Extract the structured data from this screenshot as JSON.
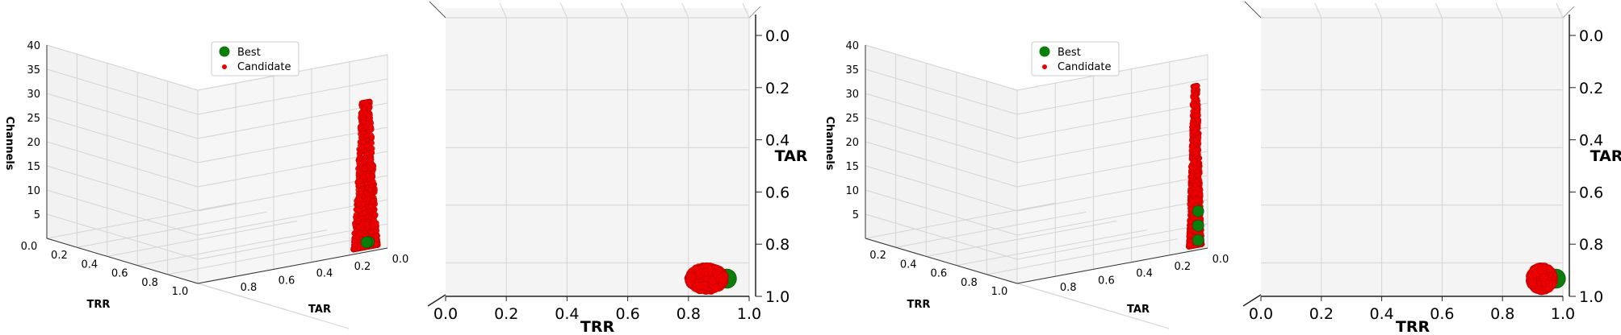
{
  "colors": {
    "best": "#0a7d0a",
    "candidate": "#ee0000",
    "pane": "#f2f2f2",
    "grid": "#d4d4d4"
  },
  "chart_data": [
    {
      "id": "p1",
      "type": "scatter3d",
      "xlabel": "TRR",
      "ylabel": "TAR",
      "zlabel": "Channels",
      "xticks": [
        "0.0",
        "0.2",
        "0.4",
        "0.6",
        "0.8",
        "1.0"
      ],
      "yticks": [
        "0.8",
        "0.6",
        "0.4",
        "0.2",
        "0.0"
      ],
      "zticks": [
        "5",
        "10",
        "15",
        "20",
        "25",
        "30",
        "35",
        "40"
      ],
      "xlim": [
        0,
        1
      ],
      "ylim": [
        0,
        1
      ],
      "zlim": [
        0,
        40
      ],
      "grid": true,
      "legend": "upper-center",
      "series": [
        {
          "name": "Best",
          "marker": "large-circle",
          "points": [
            [
              0.9,
              0.9,
              2
            ],
            [
              0.89,
              0.91,
              2
            ]
          ]
        },
        {
          "name": "Candidate",
          "marker": "small-circle",
          "spread": {
            "trr": [
              0.82,
              0.95
            ],
            "tar": [
              0.82,
              0.95
            ],
            "channels": [
              1,
              31
            ]
          }
        }
      ]
    },
    {
      "id": "p2",
      "type": "scatter",
      "xlabel": "TRR",
      "ylabel": "TAR",
      "xticks": [
        "0.0",
        "0.2",
        "0.4",
        "0.6",
        "0.8",
        "1.0"
      ],
      "yticks": [
        "0.0",
        "0.2",
        "0.4",
        "0.6",
        "0.8",
        "1.0"
      ],
      "xlim": [
        0,
        1
      ],
      "ylim": [
        1,
        0
      ],
      "grid": true,
      "series": [
        {
          "name": "Best",
          "center": [
            0.9,
            0.93
          ]
        },
        {
          "name": "Candidate",
          "trr": [
            0.8,
            0.92
          ],
          "tar": [
            0.88,
            0.97
          ]
        }
      ]
    },
    {
      "id": "p3",
      "type": "scatter3d",
      "xlabel": "TRR",
      "ylabel": "TAR",
      "zlabel": "Channels",
      "xticks": [
        "0.2",
        "0.4",
        "0.6",
        "0.8",
        "1.0"
      ],
      "yticks": [
        "0.8",
        "0.6",
        "0.4",
        "0.2",
        "0.0"
      ],
      "zticks": [
        "5",
        "10",
        "15",
        "20",
        "25",
        "30",
        "35",
        "40"
      ],
      "xlim": [
        0,
        1
      ],
      "ylim": [
        0,
        1
      ],
      "zlim": [
        0,
        40
      ],
      "grid": true,
      "legend": "upper-center",
      "series": [
        {
          "name": "Best",
          "marker": "large-circle",
          "points": [
            [
              0.95,
              0.93,
              8
            ],
            [
              0.95,
              0.93,
              5
            ],
            [
              0.95,
              0.93,
              2
            ]
          ]
        },
        {
          "name": "Candidate",
          "marker": "small-circle",
          "spread": {
            "trr": [
              0.9,
              0.97
            ],
            "tar": [
              0.88,
              0.97
            ],
            "channels": [
              1,
              34
            ]
          }
        }
      ]
    },
    {
      "id": "p4",
      "type": "scatter",
      "xlabel": "TRR",
      "ylabel": "TAR",
      "xticks": [
        "0.0",
        "0.2",
        "0.4",
        "0.6",
        "0.8",
        "1.0"
      ],
      "yticks": [
        "0.0",
        "0.2",
        "0.4",
        "0.6",
        "0.8",
        "1.0"
      ],
      "xlim": [
        0,
        1
      ],
      "ylim": [
        1,
        0
      ],
      "grid": true,
      "series": [
        {
          "name": "Best",
          "center": [
            0.95,
            0.95
          ]
        },
        {
          "name": "Candidate",
          "trr": [
            0.89,
            0.97
          ],
          "tar": [
            0.9,
            0.99
          ]
        }
      ]
    }
  ]
}
